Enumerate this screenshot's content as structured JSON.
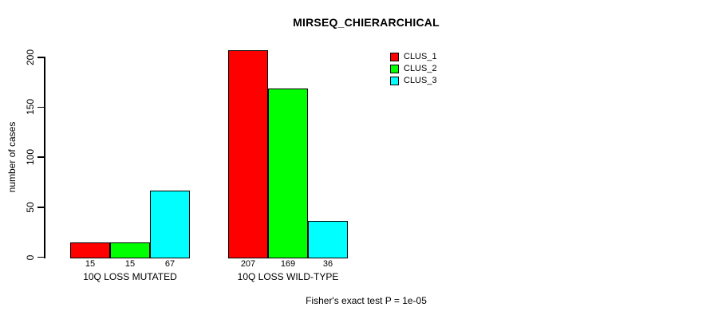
{
  "chart_data": {
    "type": "bar",
    "title": "MIRSEQ_CHIERARCHICAL",
    "ylabel": "number of cases",
    "xlabel": "",
    "categories": [
      "10Q LOSS MUTATED",
      "10Q LOSS WILD-TYPE"
    ],
    "series": [
      {
        "name": "CLUS_1",
        "color": "#ff0000",
        "values": [
          15,
          207
        ]
      },
      {
        "name": "CLUS_2",
        "color": "#00ff00",
        "values": [
          15,
          169
        ]
      },
      {
        "name": "CLUS_3",
        "color": "#00ffff",
        "values": [
          67,
          36
        ]
      }
    ],
    "show_bar_values": true,
    "yticks": [
      0,
      50,
      100,
      150,
      200
    ],
    "ylim": [
      0,
      200
    ],
    "legend": {
      "position": "top-right",
      "entries": [
        "CLUS_1",
        "CLUS_2",
        "CLUS_3"
      ]
    },
    "grid": false,
    "footnote": "Fisher's exact test P = 1e-05"
  },
  "colors": {
    "background": "#ffffff",
    "text": "#000000",
    "axis": "#000000",
    "bar_border": "#000000"
  }
}
